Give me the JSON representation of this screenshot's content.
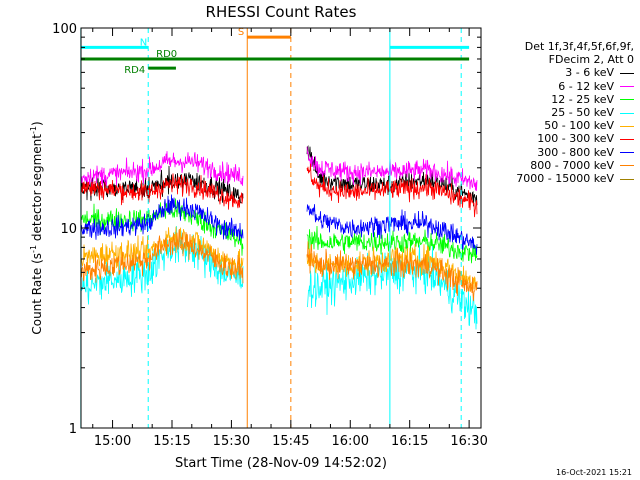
{
  "chart_data": {
    "type": "line",
    "title": "RHESSI Count Rates",
    "xlabel": "Start Time (28-Nov-09 14:52:02)",
    "ylabel": "Count Rate (s",
    "ylabel_sup1": "-1",
    "ylabel_mid": " detector segment",
    "ylabel_sup2": "-1",
    "ylabel_end": ")",
    "y_scale": "log",
    "ylim": [
      1,
      100
    ],
    "xlim": [
      "14:52:02",
      "16:33:00"
    ],
    "x_ticks": [
      "15:00",
      "15:15",
      "15:30",
      "15:45",
      "16:00",
      "16:15",
      "16:30"
    ],
    "y_ticks": [
      "1",
      "10",
      "100"
    ],
    "grid": false,
    "legend": {
      "position": "right",
      "header": [
        "Det 1f,3f,4f,5f,6f,9f,",
        "FDecim 2, Att 0"
      ]
    },
    "data_gap": [
      "15:34:00",
      "15:47:30"
    ],
    "series": [
      {
        "name": "3 - 6 keV",
        "color": "#000000",
        "x": [
          "14:52",
          "15:00",
          "15:09",
          "15:14",
          "15:20",
          "15:28",
          "15:33",
          "15:49",
          "15:52",
          "16:00",
          "16:10",
          "16:20",
          "16:30",
          "16:32"
        ],
        "y": [
          16,
          16,
          15.5,
          17,
          17.5,
          15.5,
          14,
          26,
          18,
          16.5,
          16.5,
          17.5,
          14.5,
          14
        ]
      },
      {
        "name": "6 - 12 keV",
        "color": "#ff00ff",
        "x": [
          "14:52",
          "15:00",
          "15:09",
          "15:14",
          "15:20",
          "15:28",
          "15:33",
          "15:49",
          "15:52",
          "16:00",
          "16:10",
          "16:20",
          "16:30",
          "16:32"
        ],
        "y": [
          18,
          18.5,
          19.5,
          21.5,
          21.5,
          19,
          18,
          24,
          20,
          19,
          19,
          19.5,
          17,
          16.5
        ]
      },
      {
        "name": "12 - 25 keV",
        "color": "#00ff00",
        "x": [
          "14:52",
          "15:00",
          "15:09",
          "15:14",
          "15:20",
          "15:28",
          "15:33",
          "15:49",
          "15:52",
          "16:00",
          "16:10",
          "16:20",
          "16:30",
          "16:32"
        ],
        "y": [
          11,
          11,
          11,
          12.5,
          11.5,
          9.5,
          8.5,
          9,
          8.5,
          8.5,
          8.5,
          8.5,
          7.5,
          7.5
        ]
      },
      {
        "name": "25 - 50 keV",
        "color": "#00ffff",
        "x": [
          "14:52",
          "15:00",
          "15:09",
          "15:14",
          "15:20",
          "15:28",
          "15:33",
          "15:49",
          "15:52",
          "16:00",
          "16:10",
          "16:20",
          "16:30",
          "16:32"
        ],
        "y": [
          5,
          5.5,
          6,
          8,
          8,
          6,
          5.5,
          5,
          5,
          5.5,
          6,
          6,
          4,
          3.8
        ]
      },
      {
        "name": "50 - 100 keV",
        "color": "#ffb000",
        "x": [
          "14:52",
          "15:00",
          "15:09",
          "15:14",
          "15:20",
          "15:28",
          "15:33",
          "15:49",
          "15:52",
          "16:00",
          "16:10",
          "16:20",
          "16:30",
          "16:32"
        ],
        "y": [
          7,
          7.5,
          7.5,
          9,
          8.8,
          7,
          6.5,
          7,
          6.5,
          6.5,
          7,
          7,
          5.5,
          5.5
        ]
      },
      {
        "name": "100 - 300 keV",
        "color": "#ff0000",
        "x": [
          "14:52",
          "15:00",
          "15:09",
          "15:14",
          "15:20",
          "15:28",
          "15:33",
          "15:49",
          "15:52",
          "16:00",
          "16:10",
          "16:20",
          "16:30",
          "16:32"
        ],
        "y": [
          16,
          15.5,
          15,
          16.5,
          16.5,
          14.5,
          13.5,
          20,
          16,
          15,
          15.5,
          16,
          13.5,
          13
        ]
      },
      {
        "name": "300 - 800 keV",
        "color": "#0000ff",
        "x": [
          "14:52",
          "15:00",
          "15:09",
          "15:14",
          "15:20",
          "15:28",
          "15:33",
          "15:49",
          "15:52",
          "16:00",
          "16:10",
          "16:20",
          "16:30",
          "16:32"
        ],
        "y": [
          10,
          10,
          10.5,
          13,
          12.5,
          10,
          9.5,
          13,
          11,
          10,
          10.5,
          10.5,
          8.5,
          8
        ]
      },
      {
        "name": "800 - 7000 keV",
        "color": "#ff8000",
        "x": [
          "14:52",
          "15:00",
          "15:09",
          "15:14",
          "15:20",
          "15:28",
          "15:33",
          "15:49",
          "15:52",
          "16:00",
          "16:10",
          "16:20",
          "16:30",
          "16:32"
        ],
        "y": [
          6,
          6.5,
          7,
          8.5,
          8.2,
          6.5,
          6,
          7.5,
          6.5,
          6.5,
          6.5,
          6.5,
          5,
          5
        ]
      },
      {
        "name": "7000 - 15000 keV",
        "color": "#a08000",
        "x": [],
        "y": []
      }
    ],
    "annotations": [
      {
        "label": "N",
        "color": "#00ffff",
        "y": 80,
        "x_ranges": [
          [
            "14:52",
            "15:09"
          ],
          [
            "16:10",
            "16:30"
          ]
        ]
      },
      {
        "label": "RD0",
        "color": "#008000",
        "y": 70,
        "x_ranges": [
          [
            "14:52",
            "16:30"
          ]
        ]
      },
      {
        "label": "RD4",
        "color": "#008000",
        "y": 63,
        "x_ranges": [
          [
            "15:09",
            "15:16"
          ]
        ]
      },
      {
        "label": "S",
        "color": "#ff8000",
        "y": 90,
        "x_ranges": [
          [
            "15:34",
            "15:45"
          ]
        ]
      }
    ],
    "vertical_lines": [
      {
        "x": "14:52",
        "color": "#00ffff",
        "style": "solid"
      },
      {
        "x": "15:09",
        "color": "#00ffff",
        "style": "dashed"
      },
      {
        "x": "15:34",
        "color": "#ff8000",
        "style": "solid"
      },
      {
        "x": "15:45",
        "color": "#ff8000",
        "style": "dashed"
      },
      {
        "x": "16:10",
        "color": "#00ffff",
        "style": "solid"
      },
      {
        "x": "16:28",
        "color": "#00ffff",
        "style": "dashed"
      }
    ]
  },
  "footer": {
    "timestamp": "16-Oct-2021 15:21"
  }
}
